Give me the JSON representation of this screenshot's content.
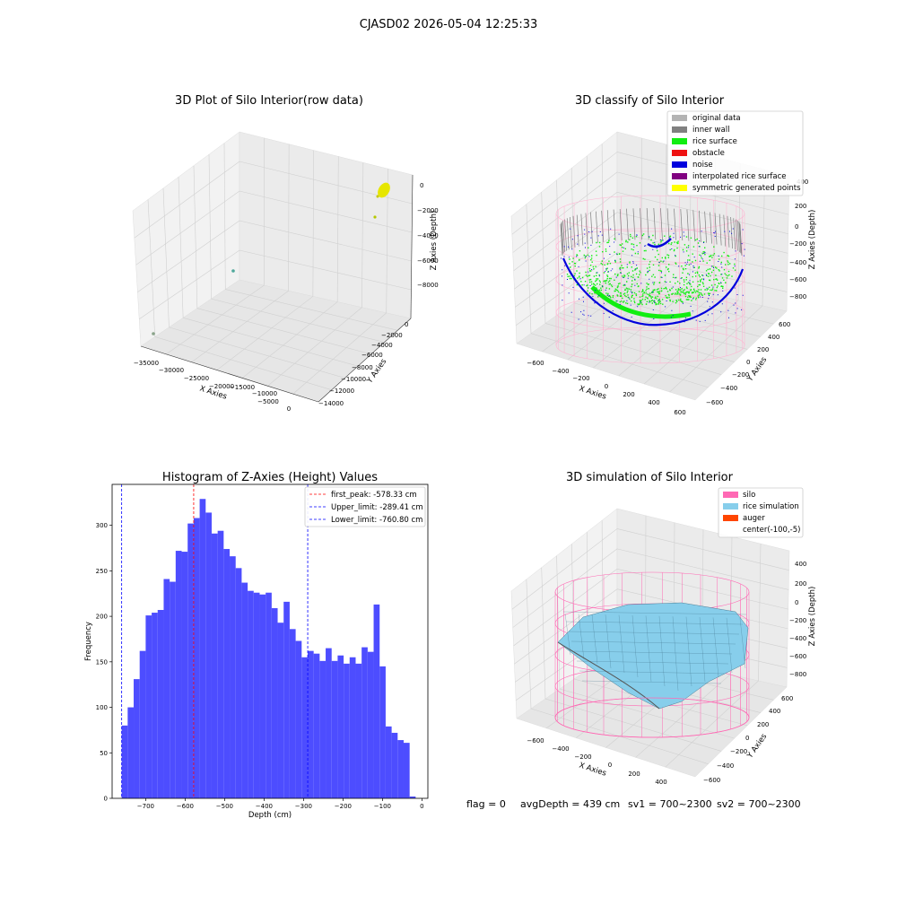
{
  "suptitle": "CJASD02 2026-05-04 12:25:33",
  "footer": {
    "flag": "flag = 0",
    "avg_depth": "avgDepth = 439 cm",
    "sv1": "sv1 = 700~2300",
    "sv2": "sv2 = 700~2300"
  },
  "colors": {
    "original": "#b3b3b3",
    "inner_wall": "#808080",
    "rice_surface": "#11ee11",
    "obstacle": "#ee1111",
    "noise": "#0000dd",
    "interpolated": "#800080",
    "symmetric": "#ffff00",
    "silo": "#ff69b4",
    "rice_sim": "#87ceeb",
    "auger": "#ff4500",
    "histogram": "#4d4dff"
  },
  "panel1": {
    "title": "3D Plot of Silo Interior(row data)",
    "xlabel": "X Axies",
    "ylabel": "Y Axies",
    "zlabel": "Z Axies (Depth)",
    "xticks": [
      "−35000",
      "−30000",
      "−25000",
      "−20000",
      "−15000",
      "−10000",
      "−5000",
      "0"
    ],
    "yticks": [
      "0",
      "−2000",
      "−4000",
      "−6000",
      "−8000",
      "−10000",
      "−12000",
      "−14000"
    ],
    "zticks": [
      "0",
      "−2000",
      "−4000",
      "−6000",
      "−8000"
    ]
  },
  "panel2": {
    "title": "3D classify of Silo Interior",
    "xlabel": "X Axies",
    "ylabel": "Y Axies",
    "zlabel": "Z Axies (Depth)",
    "xticks": [
      "−600",
      "−400",
      "−200",
      "0",
      "200",
      "400",
      "600"
    ],
    "yticks": [
      "600",
      "400",
      "200",
      "0",
      "−200",
      "−400",
      "−600"
    ],
    "zticks": [
      "400",
      "200",
      "0",
      "−200",
      "−400",
      "−600",
      "−800"
    ],
    "legend": [
      {
        "label": "original data",
        "color": "#b3b3b3"
      },
      {
        "label": "inner wall",
        "color": "#808080"
      },
      {
        "label": "rice surface",
        "color": "#11ee11"
      },
      {
        "label": "obstacle",
        "color": "#ee1111"
      },
      {
        "label": "noise",
        "color": "#0000dd"
      },
      {
        "label": "interpolated rice surface",
        "color": "#800080"
      },
      {
        "label": "symmetric generated points",
        "color": "#ffff00"
      }
    ]
  },
  "panel4": {
    "title": "3D simulation of Silo Interior",
    "xlabel": "X Axies",
    "ylabel": "Y Axies",
    "zlabel": "Z Axies (Depth)",
    "xticks": [
      "−600",
      "−400",
      "−200",
      "0",
      "200",
      "400"
    ],
    "yticks": [
      "600",
      "400",
      "200",
      "0",
      "−200",
      "−400",
      "−600"
    ],
    "zticks": [
      "400",
      "200",
      "0",
      "−200",
      "−400",
      "−600",
      "−800"
    ],
    "legend": [
      {
        "label": "silo",
        "color": "#ff69b4"
      },
      {
        "label": "rice simulation",
        "color": "#87ceeb"
      },
      {
        "label": "auger",
        "color": "#ff4500"
      },
      {
        "label": "center(-100,-5)",
        "color": ""
      }
    ]
  },
  "chart_data": {
    "type": "bar",
    "title": "Histogram of Z-Axies (Height) Values",
    "xlabel": "Depth (cm)",
    "ylabel": "Frequency",
    "xlim": [
      -785,
      15
    ],
    "ylim": [
      0,
      345
    ],
    "xticks": [
      -700,
      -600,
      -500,
      -400,
      -300,
      -200,
      -100,
      0
    ],
    "xtick_labels": [
      "−700",
      "−600",
      "−500",
      "−400",
      "−300",
      "−200",
      "−100",
      "0"
    ],
    "yticks": [
      0,
      50,
      100,
      150,
      200,
      250,
      300
    ],
    "bin_start": -760.8,
    "bin_width": 15.2,
    "values": [
      80,
      100,
      131,
      162,
      201,
      204,
      207,
      241,
      238,
      272,
      271,
      302,
      308,
      329,
      314,
      291,
      294,
      274,
      266,
      253,
      237,
      228,
      226,
      224,
      226,
      209,
      193,
      216,
      186,
      173,
      155,
      162,
      159,
      151,
      165,
      151,
      157,
      148,
      155,
      148,
      166,
      161,
      213,
      145,
      79,
      72,
      64,
      61,
      2
    ],
    "bar_color": "#4d4dff",
    "vlines": [
      {
        "label": "first_peak: -578.33 cm",
        "x": -578.33,
        "color": "#ff0000"
      },
      {
        "label": "Upper_limit: -289.41 cm",
        "x": -289.41,
        "color": "#0000ff"
      },
      {
        "label": "Lower_limit: -760.80 cm",
        "x": -760.8,
        "color": "#0000ff"
      }
    ],
    "legend_position": "upper right"
  }
}
